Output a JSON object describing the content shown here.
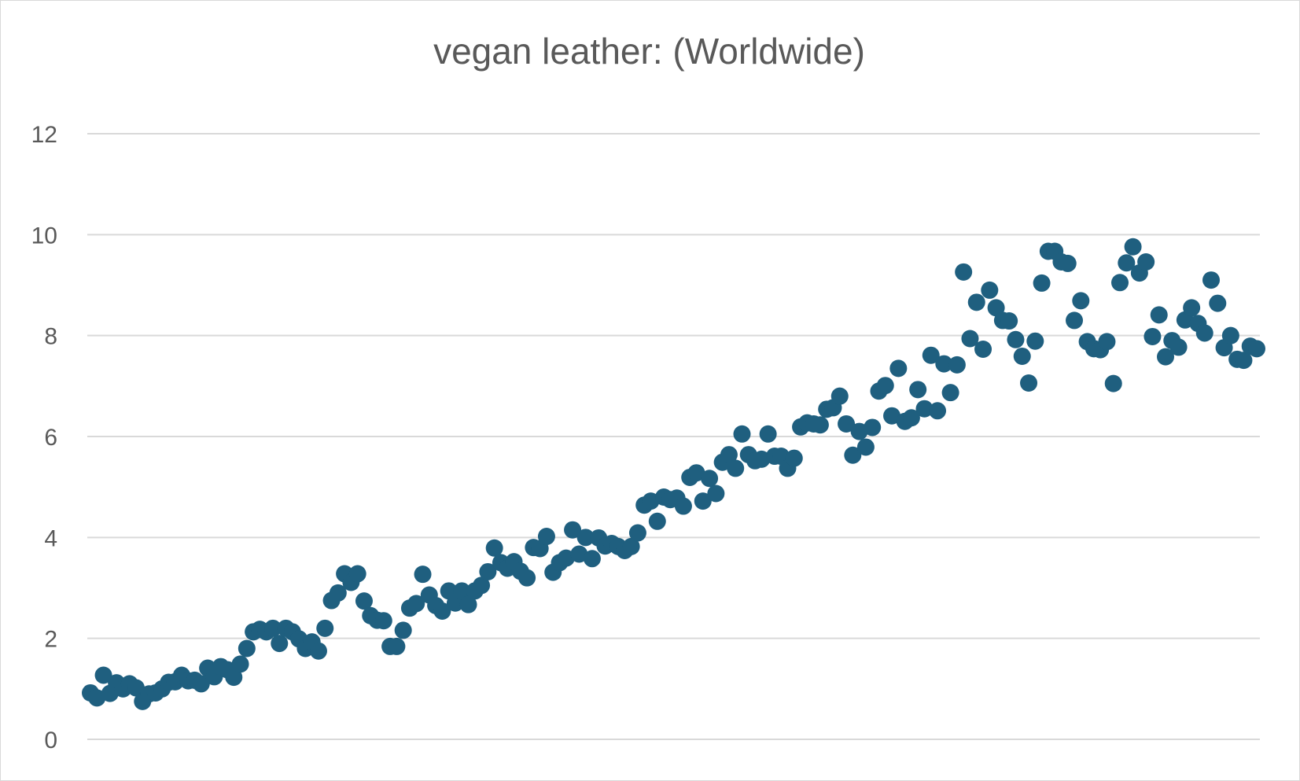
{
  "chart_data": {
    "type": "scatter",
    "title": "vegan leather: (Worldwide)",
    "xlabel": "",
    "ylabel": "",
    "ylim": [
      0,
      12
    ],
    "yticks": [
      0,
      2,
      4,
      6,
      8,
      10,
      12
    ],
    "grid": true,
    "legend": "none",
    "marker_color": "#1F5F7F",
    "gridline_color": "#d9d9d9",
    "series": [
      {
        "values": [
          0.92,
          0.82,
          1.27,
          0.91,
          1.12,
          1.0,
          1.1,
          1.02,
          0.75,
          0.9,
          0.92,
          1.0,
          1.13,
          1.14,
          1.27,
          1.16,
          1.17,
          1.1,
          1.41,
          1.24,
          1.44,
          1.38,
          1.23,
          1.49,
          1.8,
          2.13,
          2.18,
          2.13,
          2.2,
          1.9,
          2.2,
          2.13,
          1.99,
          1.8,
          1.93,
          1.75,
          2.2,
          2.75,
          2.9,
          3.28,
          3.11,
          3.28,
          2.74,
          2.45,
          2.36,
          2.35,
          1.84,
          1.84,
          2.16,
          2.6,
          2.69,
          3.27,
          2.86,
          2.65,
          2.54,
          2.94,
          2.7,
          2.94,
          2.67,
          2.94,
          3.05,
          3.32,
          3.79,
          3.5,
          3.39,
          3.52,
          3.33,
          3.2,
          3.8,
          3.78,
          4.02,
          3.31,
          3.5,
          3.59,
          4.15,
          3.67,
          4.0,
          3.58,
          3.99,
          3.83,
          3.88,
          3.82,
          3.74,
          3.82,
          4.09,
          4.64,
          4.72,
          4.32,
          4.8,
          4.75,
          4.78,
          4.62,
          5.19,
          5.28,
          4.72,
          5.17,
          4.87,
          5.49,
          5.64,
          5.37,
          6.05,
          5.64,
          5.52,
          5.55,
          6.05,
          5.61,
          5.61,
          5.37,
          5.57,
          6.19,
          6.27,
          6.25,
          6.23,
          6.54,
          6.57,
          6.8,
          6.25,
          5.63,
          6.1,
          5.79,
          6.18,
          6.9,
          7.01,
          6.41,
          7.35,
          6.3,
          6.37,
          6.93,
          6.55,
          7.61,
          6.51,
          7.44,
          6.87,
          7.42,
          9.26,
          7.94,
          8.66,
          7.73,
          8.9,
          8.55,
          8.3,
          8.29,
          7.92,
          7.59,
          7.06,
          7.89,
          9.04,
          9.67,
          9.67,
          9.46,
          9.43,
          8.3,
          8.69,
          7.88,
          7.74,
          7.72,
          7.88,
          7.05,
          9.05,
          9.44,
          9.76,
          9.24,
          9.46,
          7.98,
          8.41,
          7.58,
          7.9,
          7.77,
          8.31,
          8.55,
          8.24,
          8.05,
          9.1,
          8.64,
          7.76,
          8.0,
          7.53,
          7.51,
          7.79,
          7.74
        ]
      }
    ]
  }
}
